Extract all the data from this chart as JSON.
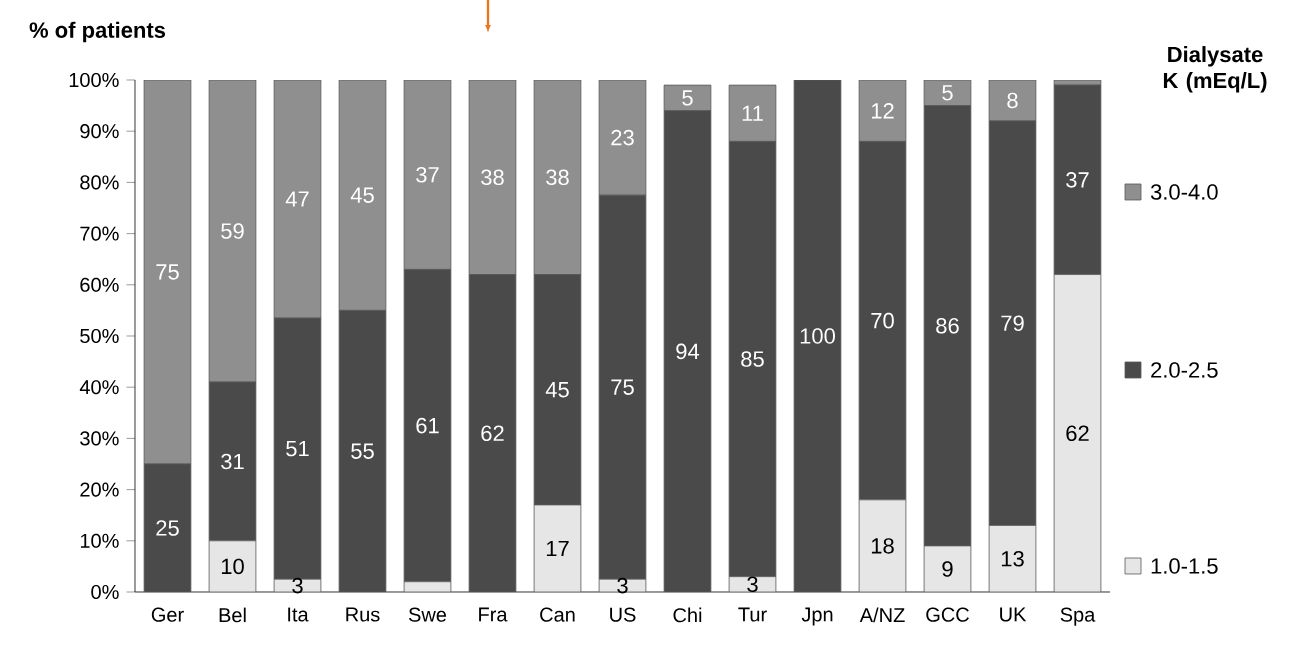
{
  "chart_data": {
    "type": "bar",
    "stacked": true,
    "ylabel": "% of patients",
    "legend_title": "Dialysate K (mEq/L)",
    "legend": "right",
    "categories": [
      "Ger",
      "Bel",
      "Ita",
      "Rus",
      "Swe",
      "Fra",
      "Can",
      "US",
      "Chi",
      "Tur",
      "Jpn",
      "A/NZ",
      "GCC",
      "UK",
      "Spa"
    ],
    "ylim": [
      0,
      100
    ],
    "yticks": [
      {
        "value": 0,
        "label": "0%"
      },
      {
        "value": 10,
        "label": "10%"
      },
      {
        "value": 20,
        "label": "20%"
      },
      {
        "value": 30,
        "label": "30%"
      },
      {
        "value": 40,
        "label": "40%"
      },
      {
        "value": 50,
        "label": "50%"
      },
      {
        "value": 60,
        "label": "60%"
      },
      {
        "value": 70,
        "label": "70%"
      },
      {
        "value": 80,
        "label": "80%"
      },
      {
        "value": 90,
        "label": "90%"
      },
      {
        "value": 100,
        "label": "100%"
      }
    ],
    "series": [
      {
        "name": "1.0-1.5",
        "color": "#e6e6e6",
        "values": [
          0,
          10,
          2.5,
          0,
          2,
          0,
          17,
          2.5,
          0,
          3,
          0,
          18,
          9,
          13,
          62
        ],
        "value_labels": [
          null,
          "10",
          "3",
          null,
          null,
          null,
          "17",
          "3",
          null,
          "3",
          null,
          "18",
          "9",
          "13",
          "62"
        ]
      },
      {
        "name": "2.0-2.5",
        "color": "#4a4a4a",
        "values": [
          25,
          31,
          51,
          55,
          61,
          62,
          45,
          75,
          94,
          85,
          100,
          70,
          86,
          79,
          37
        ],
        "value_labels": [
          "25",
          "31",
          "51",
          "55",
          "61",
          "62",
          "45",
          "75",
          "94",
          "85",
          "100",
          "70",
          "86",
          "79",
          "37"
        ]
      },
      {
        "name": "3.0-4.0",
        "color": "#8f8f8f",
        "values": [
          75,
          59,
          46.5,
          45,
          37,
          38,
          38,
          22.5,
          5,
          11,
          0,
          12,
          5,
          8,
          1
        ],
        "value_labels": [
          "75",
          "59",
          "47",
          "45",
          "37",
          "38",
          "38",
          "23",
          "5",
          "11",
          null,
          "12",
          "5",
          "8",
          null
        ]
      }
    ]
  }
}
